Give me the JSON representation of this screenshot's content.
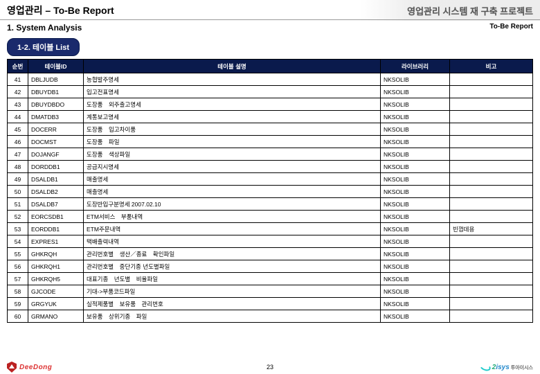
{
  "header": {
    "title_left": "영업관리 – To-Be Report",
    "title_right": "영업관리 시스템 재 구축 프로젝트"
  },
  "section": {
    "title": "1. System Analysis",
    "report_tag": "To-Be Report"
  },
  "tab": {
    "label": "1-2. 테이블 List"
  },
  "table": {
    "columns": [
      "순번",
      "테이블ID",
      "테이블 설명",
      "라이브러리",
      "비고"
    ],
    "rows": [
      [
        "41",
        "DBLJUDB",
        "농협발주명세",
        "NKSOLIB",
        ""
      ],
      [
        "42",
        "DBUYDB1",
        "입고전표명세",
        "NKSOLIB",
        ""
      ],
      [
        "43",
        "DBUYDBDO",
        "도장품　외주출고명세",
        "NKSOLIB",
        ""
      ],
      [
        "44",
        "DMATDB3",
        "계통보고명세",
        "NKSOLIB",
        ""
      ],
      [
        "45",
        "DOCERR",
        "도장품　입고차이품",
        "NKSOLIB",
        ""
      ],
      [
        "46",
        "DOCMST",
        "도장품　파일",
        "NKSOLIB",
        ""
      ],
      [
        "47",
        "DOJANGF",
        "도장품　색상파일",
        "NKSOLIB",
        ""
      ],
      [
        "48",
        "DORDDB1",
        "공급지시명세",
        "NKSOLIB",
        ""
      ],
      [
        "49",
        "DSALDB1",
        "매출명세",
        "NKSOLIB",
        ""
      ],
      [
        "50",
        "DSALDB2",
        "매출명세",
        "NKSOLIB",
        ""
      ],
      [
        "51",
        "DSALDB7",
        "도장반입구분명세 2007.02.10",
        "NKSOLIB",
        ""
      ],
      [
        "52",
        "EORCSDB1",
        "ETM서비스　부품내역",
        "NKSOLIB",
        ""
      ],
      [
        "53",
        "EORDDB1",
        "ETM주문내역",
        "NKSOLIB",
        "빈껍데용"
      ],
      [
        "54",
        "EXPRES1",
        "택배출력내역",
        "NKSOLIB",
        ""
      ],
      [
        "55",
        "GHKRQH",
        "관리번호별　생산／종료　확인파일",
        "NKSOLIB",
        ""
      ],
      [
        "56",
        "GHKRQH1",
        "관리번호별　중단기종 년도별파일",
        "NKSOLIB",
        ""
      ],
      [
        "57",
        "GHKRQH5",
        "대표기종　년도별　비율파일",
        "NKSOLIB",
        ""
      ],
      [
        "58",
        "GJCODE",
        "기대->부품코드파일",
        "NKSOLIB",
        ""
      ],
      [
        "59",
        "GRGYUK",
        "실적제품별　보유품　관리번호",
        "NKSOLIB",
        ""
      ],
      [
        "60",
        "GRMANO",
        "보유품　상위기종　파일",
        "NKSOLIB",
        ""
      ]
    ]
  },
  "footer": {
    "page": "23",
    "logo_left": "DeeDong",
    "logo_right_two": "2",
    "logo_right_isys": "isys",
    "logo_right_ko": "투아이시스"
  },
  "colors": {
    "tab_bg": "#1a2a6c",
    "th_bg": "#0a1a4c",
    "brand_red": "#d33",
    "brand_green": "#2a7",
    "brand_blue": "#28c"
  }
}
